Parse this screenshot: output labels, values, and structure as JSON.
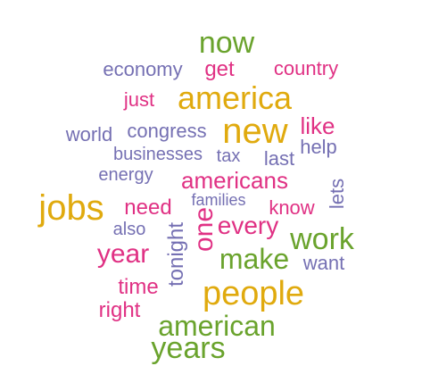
{
  "palette": {
    "gold": "#e0aa0e",
    "green": "#6aa32d",
    "magenta": "#e03184",
    "purple": "#7570b3"
  },
  "words": [
    {
      "text": "now",
      "color": "green"
    },
    {
      "text": "economy",
      "color": "purple"
    },
    {
      "text": "get",
      "color": "magenta"
    },
    {
      "text": "country",
      "color": "magenta"
    },
    {
      "text": "just",
      "color": "magenta"
    },
    {
      "text": "america",
      "color": "gold"
    },
    {
      "text": "world",
      "color": "purple"
    },
    {
      "text": "congress",
      "color": "purple"
    },
    {
      "text": "new",
      "color": "gold"
    },
    {
      "text": "like",
      "color": "magenta"
    },
    {
      "text": "help",
      "color": "purple"
    },
    {
      "text": "businesses",
      "color": "purple"
    },
    {
      "text": "tax",
      "color": "purple"
    },
    {
      "text": "last",
      "color": "purple"
    },
    {
      "text": "energy",
      "color": "purple"
    },
    {
      "text": "americans",
      "color": "magenta"
    },
    {
      "text": "lets",
      "color": "purple"
    },
    {
      "text": "jobs",
      "color": "gold"
    },
    {
      "text": "need",
      "color": "magenta"
    },
    {
      "text": "families",
      "color": "purple"
    },
    {
      "text": "know",
      "color": "magenta"
    },
    {
      "text": "one",
      "color": "magenta"
    },
    {
      "text": "every",
      "color": "magenta"
    },
    {
      "text": "also",
      "color": "purple"
    },
    {
      "text": "tonight",
      "color": "purple"
    },
    {
      "text": "work",
      "color": "green"
    },
    {
      "text": "year",
      "color": "magenta"
    },
    {
      "text": "make",
      "color": "green"
    },
    {
      "text": "want",
      "color": "purple"
    },
    {
      "text": "time",
      "color": "magenta"
    },
    {
      "text": "people",
      "color": "gold"
    },
    {
      "text": "right",
      "color": "magenta"
    },
    {
      "text": "american",
      "color": "green"
    },
    {
      "text": "years",
      "color": "green"
    }
  ]
}
